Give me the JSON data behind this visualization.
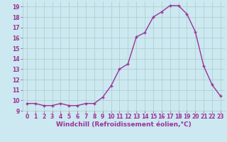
{
  "x": [
    0,
    1,
    2,
    3,
    4,
    5,
    6,
    7,
    8,
    9,
    10,
    11,
    12,
    13,
    14,
    15,
    16,
    17,
    18,
    19,
    20,
    21,
    22,
    23
  ],
  "y": [
    9.7,
    9.7,
    9.5,
    9.5,
    9.7,
    9.5,
    9.5,
    9.7,
    9.7,
    10.3,
    11.4,
    13.0,
    13.5,
    16.1,
    16.5,
    18.0,
    18.5,
    19.1,
    19.1,
    18.3,
    16.6,
    13.3,
    11.5,
    10.4
  ],
  "line_color": "#993399",
  "marker": "+",
  "marker_size": 3.5,
  "marker_lw": 1.0,
  "bg_color": "#cce8f0",
  "grid_color": "#aacccc",
  "xlabel": "Windchill (Refroidissement éolien,°C)",
  "xlim": [
    -0.5,
    23.5
  ],
  "ylim": [
    9.0,
    19.5
  ],
  "yticks": [
    9,
    10,
    11,
    12,
    13,
    14,
    15,
    16,
    17,
    18,
    19
  ],
  "xticks": [
    0,
    1,
    2,
    3,
    4,
    5,
    6,
    7,
    8,
    9,
    10,
    11,
    12,
    13,
    14,
    15,
    16,
    17,
    18,
    19,
    20,
    21,
    22,
    23
  ],
  "tick_fontsize": 5.5,
  "xlabel_fontsize": 6.5,
  "linewidth": 1.0
}
